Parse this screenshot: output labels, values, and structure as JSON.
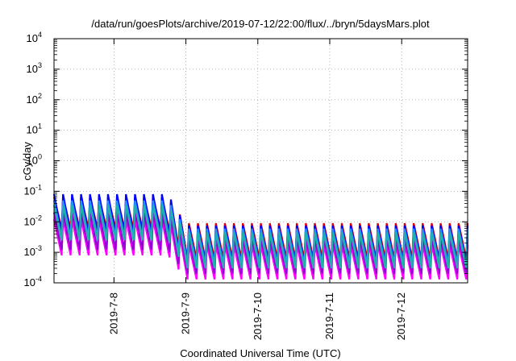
{
  "chart_data": {
    "type": "line",
    "title": "/data/run/goesPlots/archive/2019-07-12/22:00/flux/../bryn/5daysMars.plot",
    "xlabel": "Coordinated Universal Time (UTC)",
    "ylabel": "cGy/day",
    "yscale": "log",
    "ylim": [
      0.0001,
      10000
    ],
    "xlim": [
      "2019-07-07T04:00",
      "2019-07-12T22:00"
    ],
    "grid": true,
    "y_ticks": [
      {
        "base": "10",
        "exp": "-4"
      },
      {
        "base": "10",
        "exp": "-3"
      },
      {
        "base": "10",
        "exp": "-2"
      },
      {
        "base": "10",
        "exp": "-1"
      },
      {
        "base": "10",
        "exp": "0"
      },
      {
        "base": "10",
        "exp": "1"
      },
      {
        "base": "10",
        "exp": "2"
      },
      {
        "base": "10",
        "exp": "3"
      },
      {
        "base": "10",
        "exp": "4"
      }
    ],
    "x_ticks": [
      "2019-7-8",
      "2019-7-9",
      "2019-7-10",
      "2019-7-11",
      "2019-7-12"
    ],
    "oscillation_period_hours": 3,
    "series": [
      {
        "color": "#ff00ff",
        "peaks_before_2019_7_8_18h": 0.012,
        "troughs_before_2019_7_8_18h": 0.0008,
        "peaks_after_2019_7_9": 0.0018,
        "troughs_after_2019_7_9": 0.00013
      },
      {
        "color": "#9400d3",
        "peaks_before_2019_7_8_18h": 0.02,
        "troughs_before_2019_7_8_18h": 0.0012,
        "peaks_after_2019_7_9": 0.0028,
        "troughs_after_2019_7_9": 0.0002
      },
      {
        "color": "#e00000",
        "peaks_before_2019_7_8_18h": 0.065,
        "troughs_before_2019_7_8_18h": 0.006,
        "peaks_after_2019_7_9": 0.009,
        "troughs_after_2019_7_9": 0.0006
      },
      {
        "color": "#0000ff",
        "peaks_before_2019_7_8_18h": 0.08,
        "troughs_before_2019_7_8_18h": 0.004,
        "peaks_after_2019_7_9": 0.0075,
        "troughs_after_2019_7_9": 0.00045
      },
      {
        "color": "#1e90ff",
        "peaks_before_2019_7_8_18h": 0.05,
        "troughs_before_2019_7_8_18h": 0.003,
        "peaks_after_2019_7_9": 0.006,
        "troughs_after_2019_7_9": 0.0004
      },
      {
        "color": "#20b2aa",
        "peaks_before_2019_7_8_18h": 0.035,
        "troughs_before_2019_7_8_18h": 0.0025,
        "peaks_after_2019_7_9": 0.0045,
        "troughs_after_2019_7_9": 0.0003
      }
    ]
  }
}
